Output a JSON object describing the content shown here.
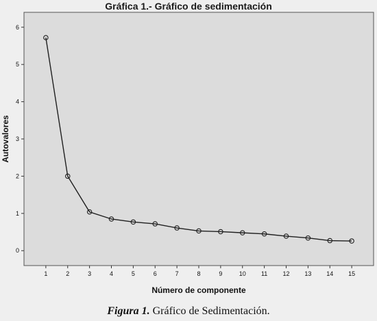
{
  "chart_data": {
    "type": "line",
    "title": "Gráfica 1.- Gráfico de sedimentación",
    "xlabel": "Número de componente",
    "ylabel": "Autovalores",
    "x": [
      1,
      2,
      3,
      4,
      5,
      6,
      7,
      8,
      9,
      10,
      11,
      12,
      13,
      14,
      15
    ],
    "xticks": [
      "1",
      "2",
      "3",
      "4",
      "5",
      "6",
      "7",
      "8",
      "9",
      "10",
      "11",
      "12",
      "13",
      "14",
      "15"
    ],
    "y": [
      5.72,
      2.0,
      1.04,
      0.85,
      0.77,
      0.72,
      0.61,
      0.53,
      0.51,
      0.48,
      0.45,
      0.39,
      0.34,
      0.27,
      0.26
    ],
    "yticks": [
      0,
      1,
      2,
      3,
      4,
      5,
      6
    ],
    "ylim": [
      -0.4,
      6.4
    ],
    "xlim": [
      0,
      16
    ],
    "grid": false,
    "colors": {
      "plot_background": "#dcdcdc",
      "line": "#1f1f1f",
      "marker_stroke": "#1f1f1f"
    }
  },
  "caption": {
    "lead": "Figura 1.",
    "text": " Gráfico de Sedimentación."
  }
}
